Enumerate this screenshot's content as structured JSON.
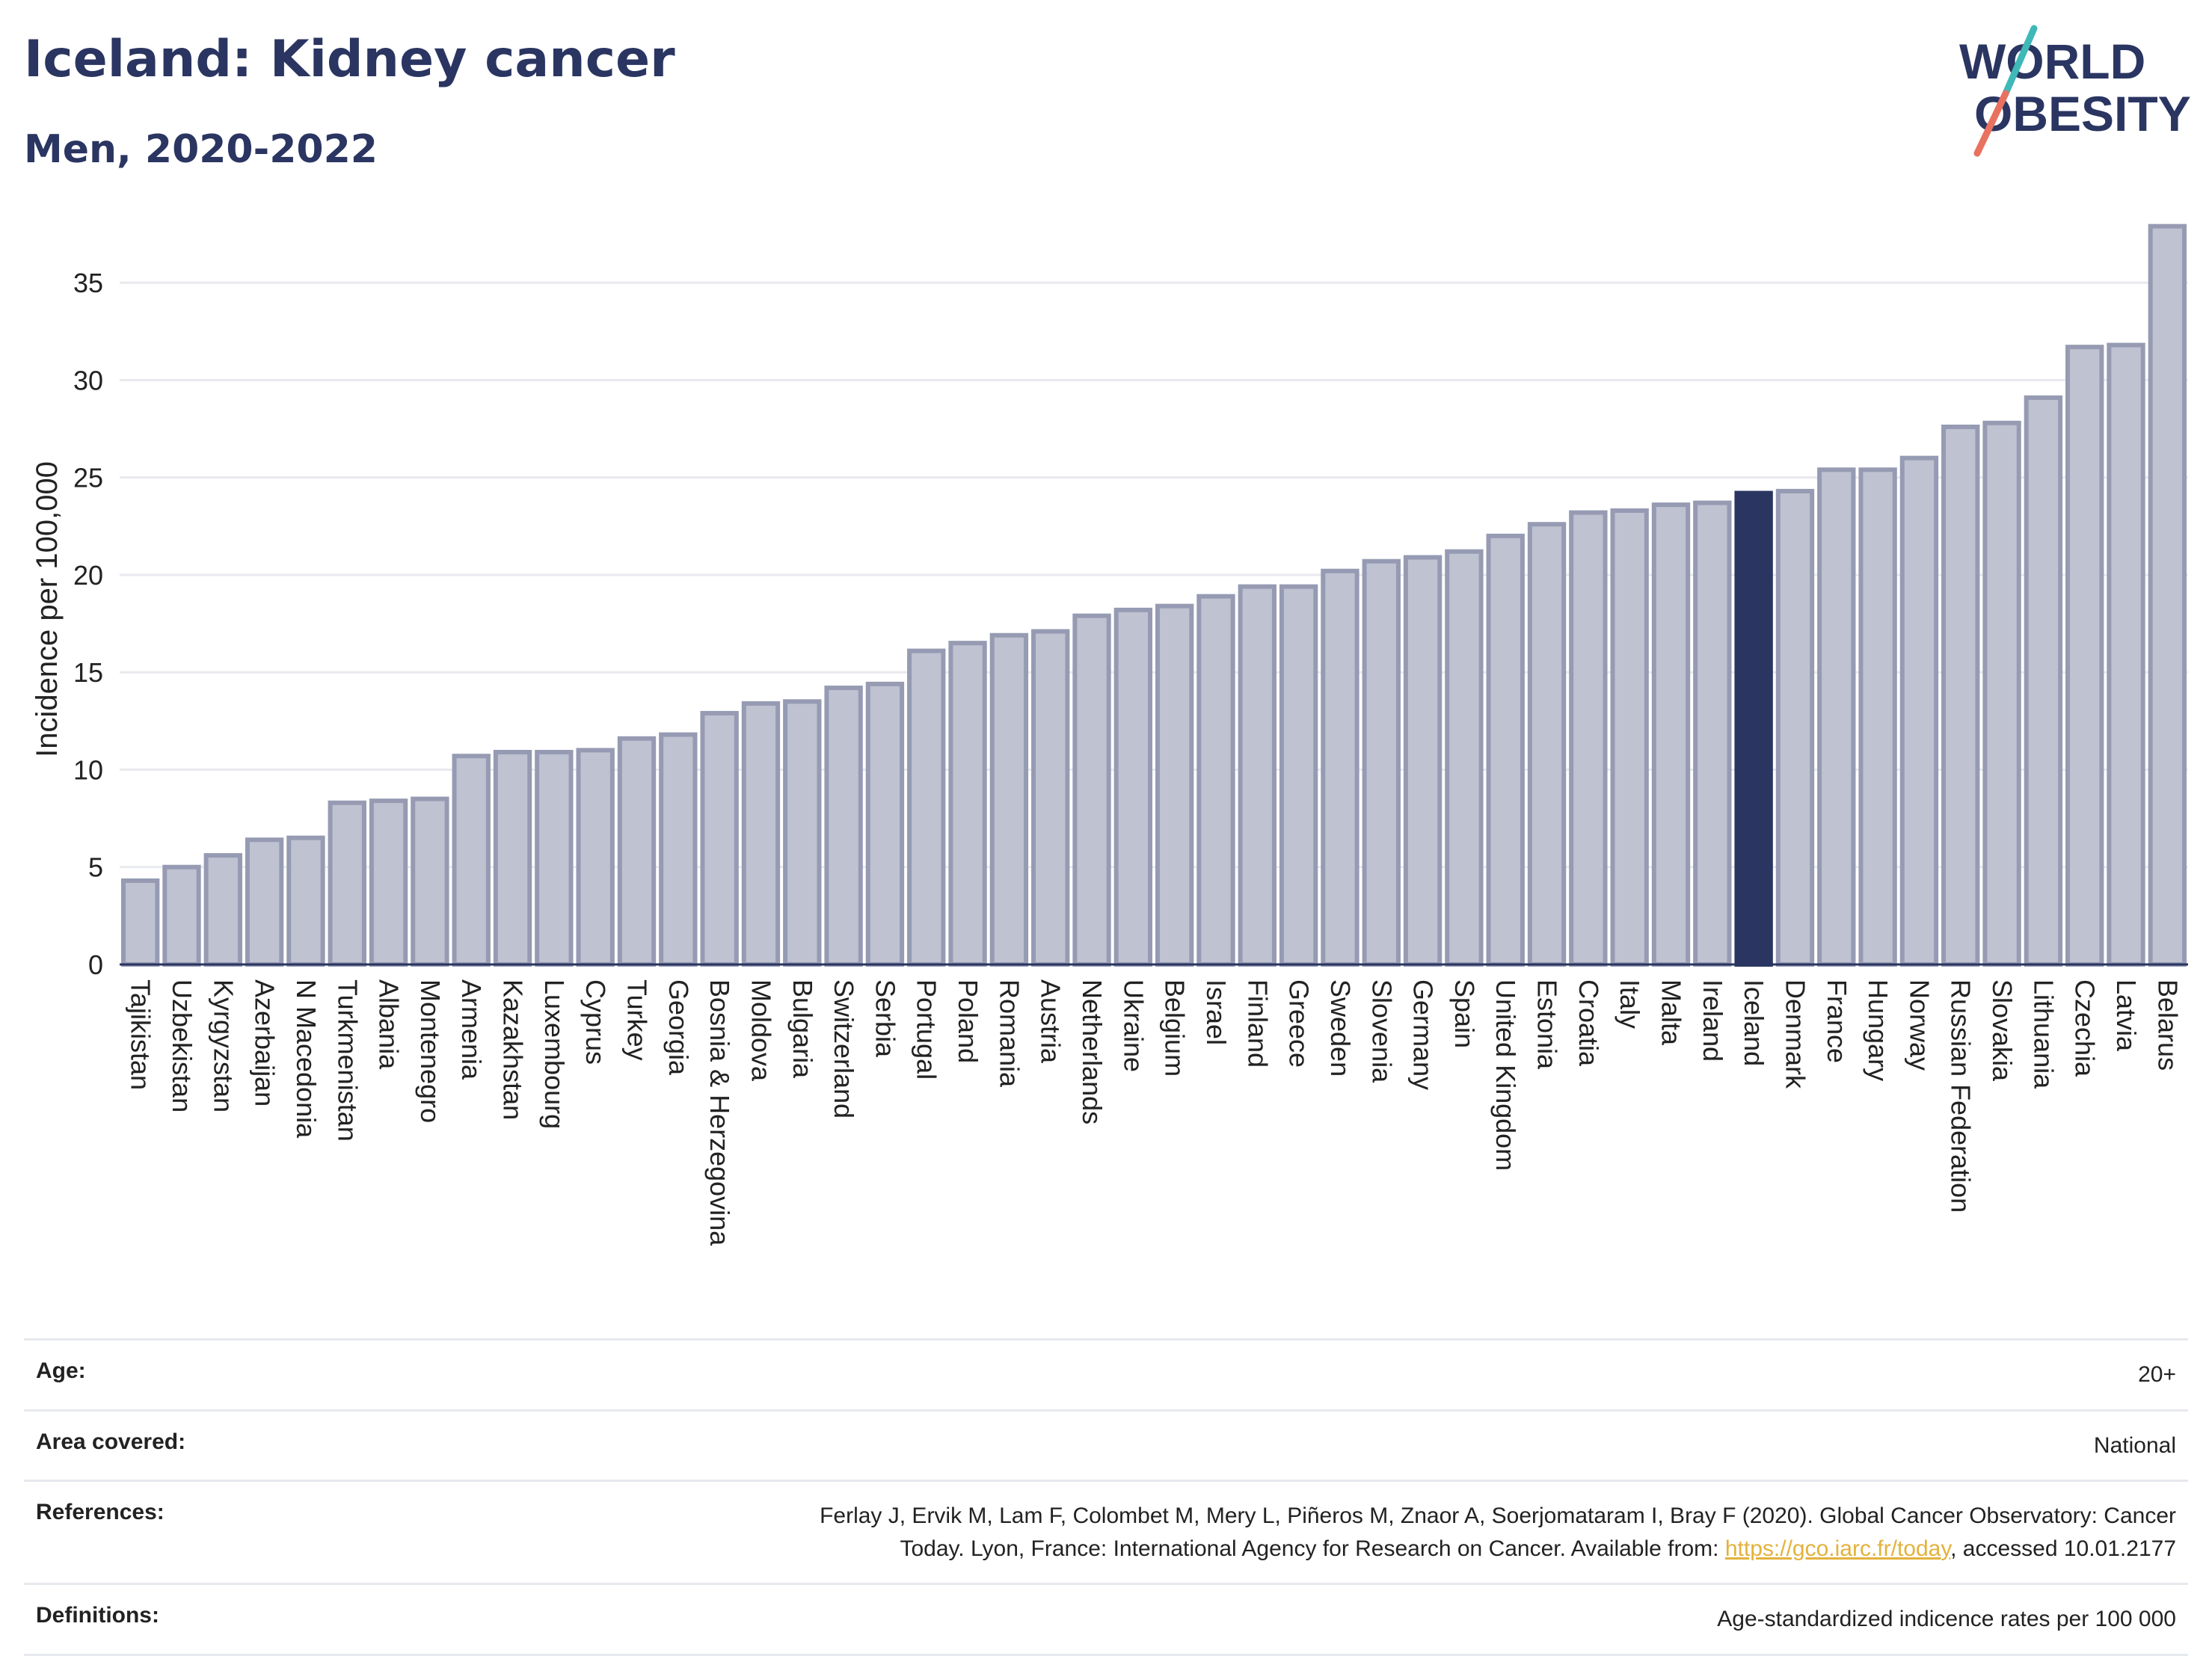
{
  "header": {
    "title": "Iceland: Kidney cancer",
    "subtitle": "Men, 2020-2022",
    "logo_line1": "WORLD",
    "logo_line2": "OBESITY"
  },
  "chart_data": {
    "type": "bar",
    "ylabel": "Incidence per 100,000",
    "ylim": [
      0,
      38
    ],
    "yticks": [
      0,
      5,
      10,
      15,
      20,
      25,
      30,
      35
    ],
    "grid": true,
    "highlight": "Iceland",
    "colors": {
      "bar": "#bec2d1",
      "bar_edge": "#969bb3",
      "highlight": "#2a3561",
      "grid": "#e8eaef"
    },
    "categories": [
      "Tajikistan",
      "Uzbekistan",
      "Kyrgyzstan",
      "Azerbaijan",
      "N Macedonia",
      "Turkmenistan",
      "Albania",
      "Montenegro",
      "Armenia",
      "Kazakhstan",
      "Luxembourg",
      "Cyprus",
      "Turkey",
      "Georgia",
      "Bosnia & Herzegovina",
      "Moldova",
      "Bulgaria",
      "Switzerland",
      "Serbia",
      "Portugal",
      "Poland",
      "Romania",
      "Austria",
      "Netherlands",
      "Ukraine",
      "Belgium",
      "Israel",
      "Finland",
      "Greece",
      "Sweden",
      "Slovenia",
      "Germany",
      "Spain",
      "United Kingdom",
      "Estonia",
      "Croatia",
      "Italy",
      "Malta",
      "Ireland",
      "Iceland",
      "Denmark",
      "France",
      "Hungary",
      "Norway",
      "Russian Federation",
      "Slovakia",
      "Lithuania",
      "Czechia",
      "Latvia",
      "Belarus"
    ],
    "values": [
      4.3,
      5.0,
      5.6,
      6.4,
      6.5,
      8.3,
      8.4,
      8.5,
      10.7,
      10.9,
      10.9,
      11.0,
      11.6,
      11.8,
      12.9,
      13.4,
      13.5,
      14.2,
      14.4,
      16.1,
      16.5,
      16.9,
      17.1,
      17.9,
      18.2,
      18.4,
      18.9,
      19.4,
      19.4,
      20.2,
      20.7,
      20.9,
      21.2,
      22.0,
      22.6,
      23.2,
      23.3,
      23.6,
      23.7,
      24.2,
      24.3,
      25.4,
      25.4,
      26.0,
      27.6,
      27.8,
      29.1,
      31.7,
      31.8,
      37.9
    ]
  },
  "meta": {
    "age_label": "Age:",
    "age_value": "20+",
    "area_label": "Area covered:",
    "area_value": "National",
    "refs_label": "References:",
    "refs_line1": "Ferlay J, Ervik M, Lam F, Colombet M, Mery L, Piñeros M, Znaor A, Soerjomataram I, Bray F (2020). Global Cancer Observatory: Cancer",
    "refs_line2_pre": "Today. Lyon, France: International Agency for Research on Cancer. Available from: ",
    "refs_link": "https://gco.iarc.fr/today",
    "refs_line2_post": ", accessed 10.01.2177",
    "defs_label": "Definitions:",
    "defs_value": "Age-standardized indicence rates per 100 000"
  }
}
